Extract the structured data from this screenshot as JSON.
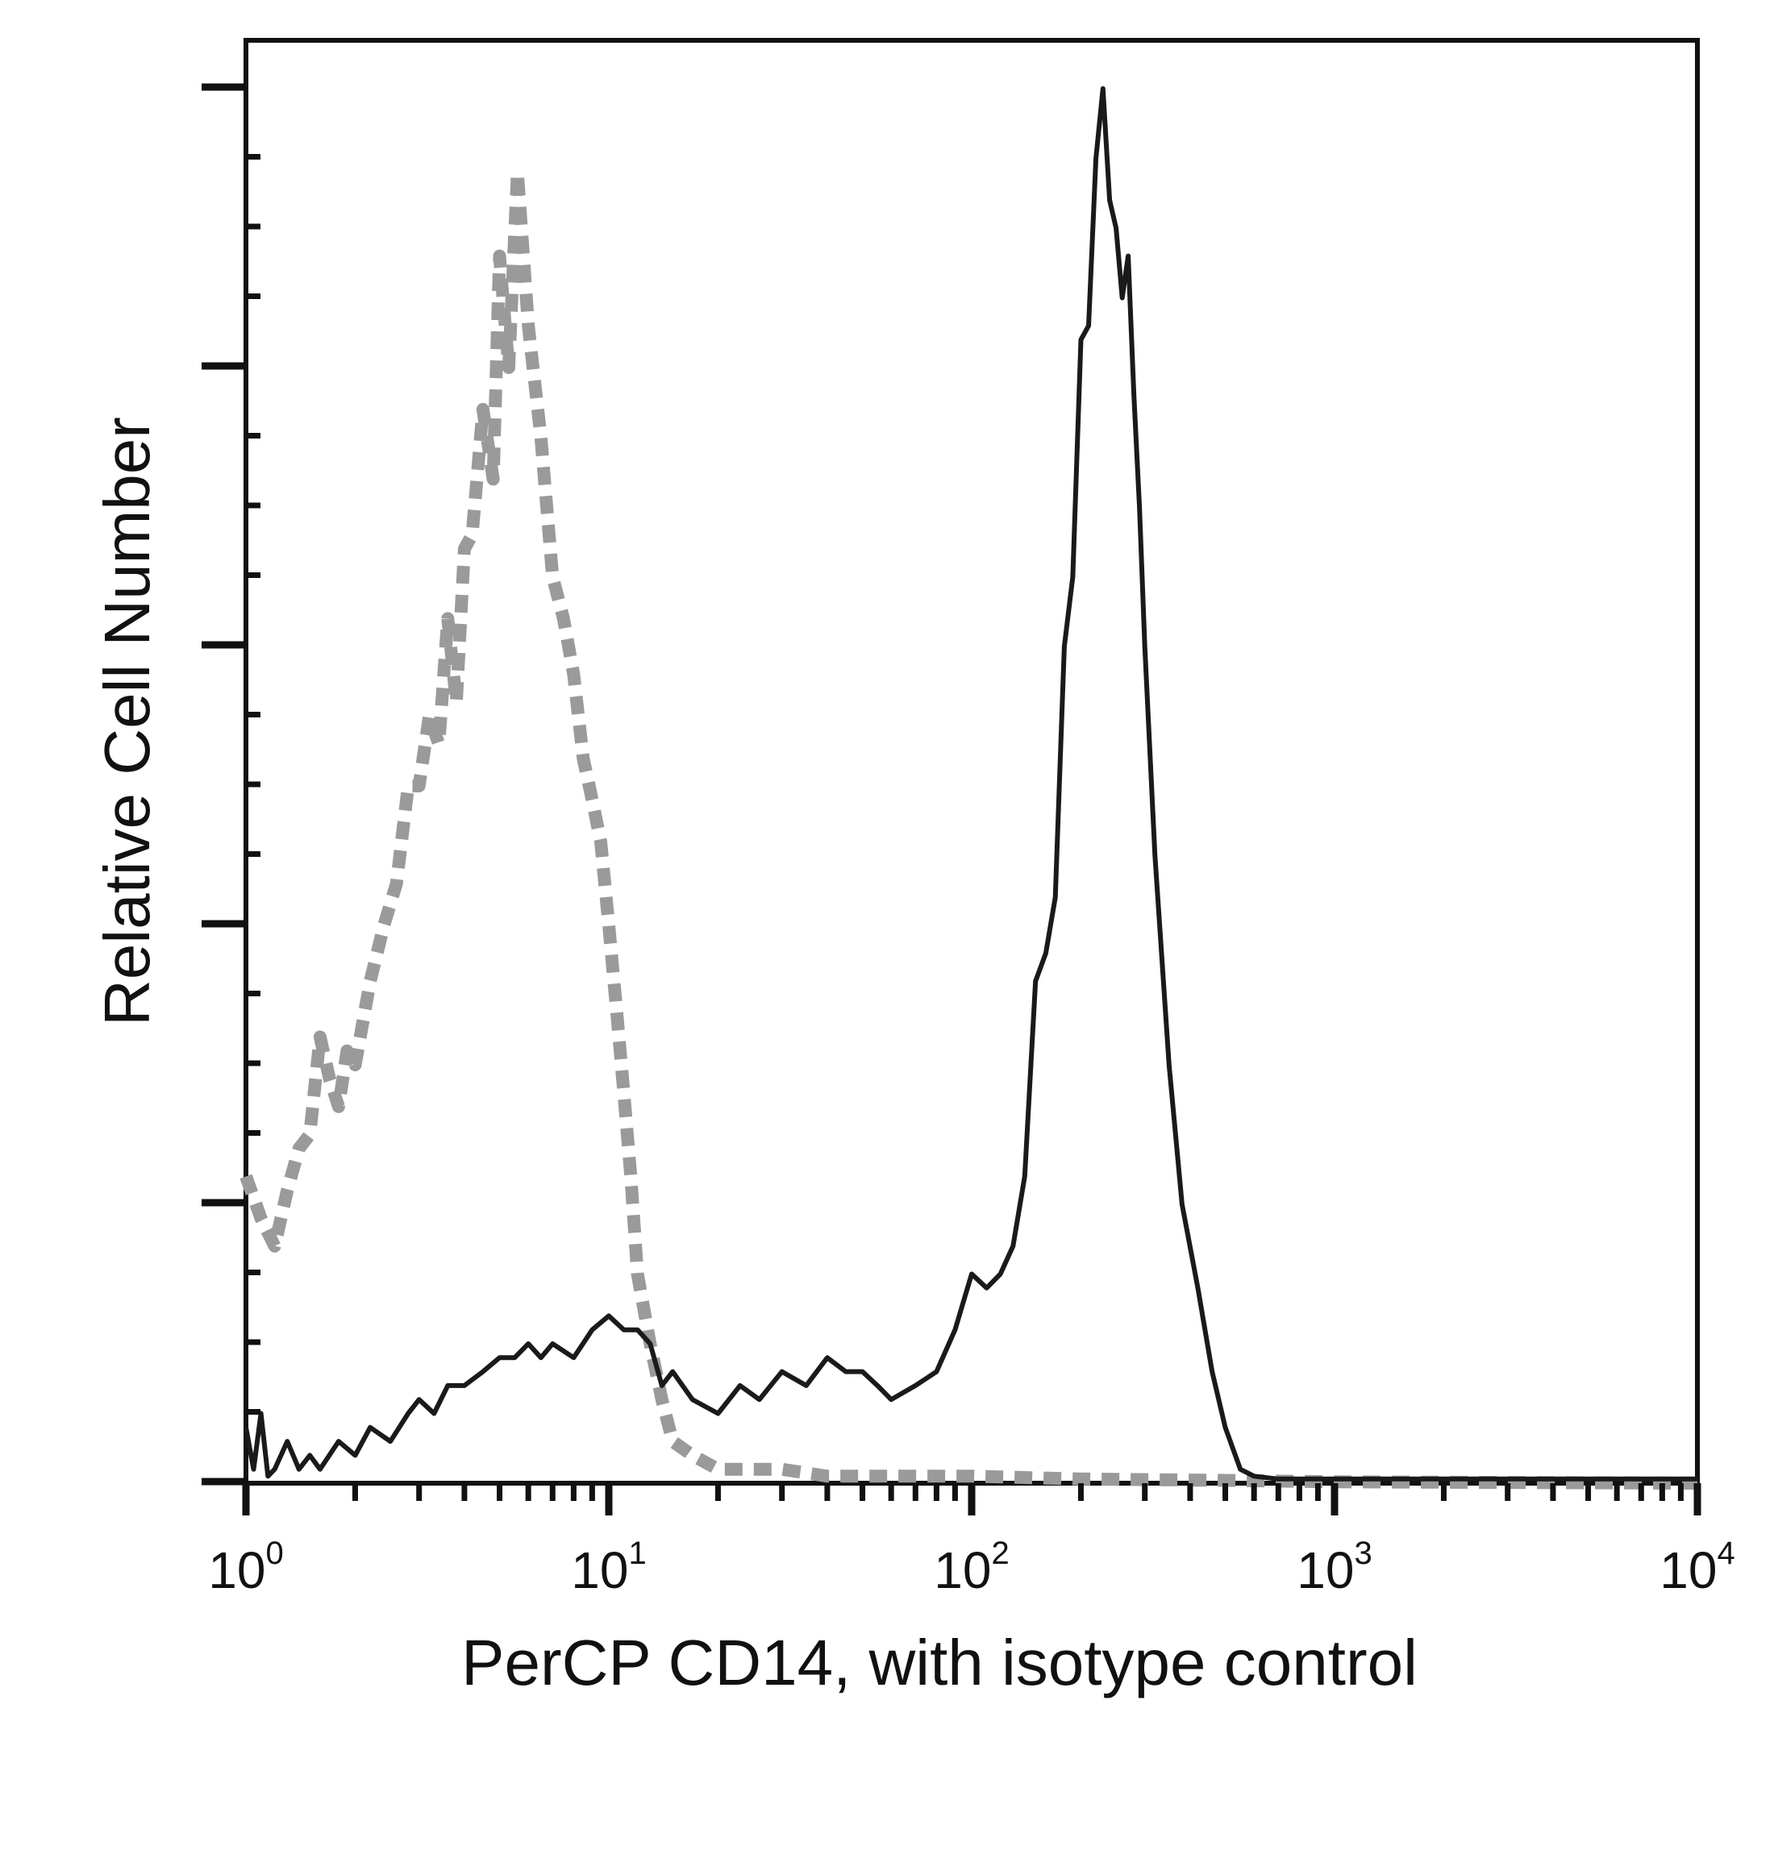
{
  "chart_data": {
    "type": "line",
    "title": "",
    "xlabel": "PerCP CD14, with isotype control",
    "ylabel": "Relative Cell Number",
    "x_scale": "log",
    "xlim": [
      1,
      10000
    ],
    "ylim": [
      0,
      100
    ],
    "grid": false,
    "legend": "none",
    "x_ticks": [
      {
        "base": "10",
        "exp": "0",
        "value": 1
      },
      {
        "base": "10",
        "exp": "1",
        "value": 10
      },
      {
        "base": "10",
        "exp": "2",
        "value": 100
      },
      {
        "base": "10",
        "exp": "3",
        "value": 1000
      },
      {
        "base": "10",
        "exp": "4",
        "value": 10000
      }
    ],
    "series": [
      {
        "style": "dashed",
        "color": "#9a9a9a",
        "x": [
          1.0,
          1.1,
          1.2,
          1.3,
          1.4,
          1.5,
          1.6,
          1.7,
          1.8,
          1.9,
          2.0,
          2.2,
          2.4,
          2.6,
          2.8,
          3.0,
          3.2,
          3.4,
          3.6,
          3.8,
          4.0,
          4.2,
          4.5,
          4.8,
          5.0,
          5.3,
          5.6,
          6.0,
          6.5,
          7.0,
          7.5,
          8.0,
          8.5,
          9.0,
          9.5,
          10.0,
          10.5,
          11.0,
          11.5,
          12.0,
          13.0,
          14.0,
          15.0,
          17.0,
          20.0,
          25.0,
          30.0,
          40.0,
          60.0,
          100.0,
          200.0,
          500.0,
          1000.0,
          10000.0
        ],
        "y": [
          22,
          19,
          17,
          21,
          24,
          25,
          32,
          29,
          27,
          31,
          30,
          36,
          40,
          43,
          50,
          50,
          55,
          53,
          62,
          56,
          67,
          68,
          77,
          72,
          88,
          80,
          94,
          83,
          75,
          65,
          62,
          58,
          52,
          49,
          46,
          40,
          34,
          28,
          22,
          15,
          10,
          6,
          3,
          2,
          1,
          1,
          1,
          0.5,
          0.5,
          0.5,
          0.3,
          0.2,
          0.1,
          0
        ]
      },
      {
        "style": "solid",
        "color": "#1a1a1a",
        "x": [
          1.0,
          1.05,
          1.1,
          1.15,
          1.2,
          1.3,
          1.4,
          1.5,
          1.6,
          1.8,
          2.0,
          2.2,
          2.5,
          2.8,
          3.0,
          3.3,
          3.6,
          4.0,
          4.5,
          5.0,
          5.5,
          6.0,
          6.5,
          7.0,
          8.0,
          9.0,
          10.0,
          11.0,
          12.0,
          13.0,
          14.0,
          15.0,
          17.0,
          20.0,
          23.0,
          26.0,
          30.0,
          35.0,
          40.0,
          45.0,
          50.0,
          55.0,
          60.0,
          70.0,
          80.0,
          90.0,
          100.0,
          110.0,
          120.0,
          130.0,
          140.0,
          150.0,
          160.0,
          170.0,
          180.0,
          190.0,
          200.0,
          210.0,
          220.0,
          230.0,
          240.0,
          250.0,
          260.0,
          270.0,
          280.0,
          290.0,
          300.0,
          320.0,
          350.0,
          380.0,
          420.0,
          460.0,
          500.0,
          550.0,
          600.0,
          700.0,
          800.0,
          1000.0,
          2000.0,
          5000.0,
          10000.0
        ],
        "y": [
          4,
          1,
          5,
          0.5,
          1,
          3,
          1,
          2,
          1,
          3,
          2,
          4,
          3,
          5,
          6,
          5,
          7,
          7,
          8,
          9,
          9,
          10,
          9,
          10,
          9,
          11,
          12,
          11,
          11,
          10,
          7,
          8,
          6,
          5,
          7,
          6,
          8,
          7,
          9,
          8,
          8,
          7,
          6,
          7,
          8,
          11,
          15,
          14,
          15,
          17,
          22,
          36,
          38,
          42,
          60,
          65,
          82,
          83,
          95,
          100,
          92,
          90,
          85,
          88,
          78,
          70,
          60,
          45,
          30,
          20,
          14,
          8,
          4,
          1,
          0.5,
          0.3,
          0.3,
          0.3,
          0.3,
          0.3,
          0.3
        ]
      }
    ]
  }
}
